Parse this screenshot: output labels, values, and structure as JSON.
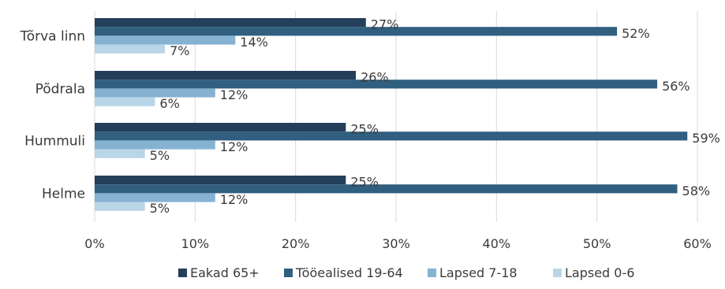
{
  "chart_data": {
    "type": "bar",
    "orientation": "horizontal",
    "categories": [
      "Tõrva linn",
      "Põdrala",
      "Hummuli",
      "Helme"
    ],
    "series": [
      {
        "name": "Eakad 65+",
        "values": [
          27,
          26,
          25,
          25
        ],
        "labels": [
          "27%",
          "26%",
          "25%",
          "25%"
        ],
        "color": "#243f5a"
      },
      {
        "name": "Tööealised 19-64",
        "values": [
          52,
          56,
          59,
          58
        ],
        "labels": [
          "52%",
          "56%",
          "59%",
          "58%"
        ],
        "color": "#305f7f"
      },
      {
        "name": "Lapsed 7-18",
        "values": [
          14,
          12,
          12,
          12
        ],
        "labels": [
          "14%",
          "12%",
          "12%",
          "12%"
        ],
        "color": "#86b2d2"
      },
      {
        "name": "Lapsed 0-6",
        "values": [
          7,
          6,
          5,
          5
        ],
        "labels": [
          "7%",
          "6%",
          "5%",
          "5%"
        ],
        "color": "#b9d6e8"
      }
    ],
    "x_ticks": [
      "0%",
      "10%",
      "20%",
      "30%",
      "40%",
      "50%",
      "60%"
    ],
    "xlim": [
      0,
      60
    ],
    "unit": "%",
    "grid": "vertical",
    "legend_position": "bottom",
    "gridline_color": "#d9d9d9"
  }
}
